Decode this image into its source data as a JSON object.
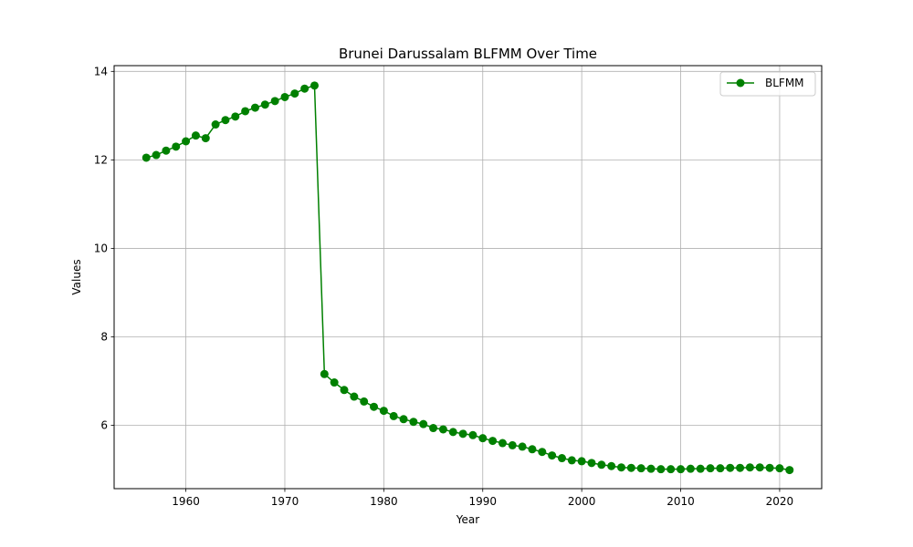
{
  "chart_data": {
    "type": "line",
    "title": "Brunei Darussalam BLFMM Over Time",
    "xlabel": "Year",
    "ylabel": "Values",
    "xlim": [
      1952.75,
      2024.25
    ],
    "ylim": [
      4.57,
      14.13
    ],
    "xticks": [
      1960,
      1970,
      1980,
      1990,
      2000,
      2010,
      2020
    ],
    "yticks": [
      6,
      8,
      10,
      12,
      14
    ],
    "grid": true,
    "legend_position": "top-right",
    "series": [
      {
        "name": "BLFMM",
        "color": "#008000",
        "marker": "circle",
        "x": [
          1956,
          1957,
          1958,
          1959,
          1960,
          1961,
          1962,
          1963,
          1964,
          1965,
          1966,
          1967,
          1968,
          1969,
          1970,
          1971,
          1972,
          1973,
          1974,
          1975,
          1976,
          1977,
          1978,
          1979,
          1980,
          1981,
          1982,
          1983,
          1984,
          1985,
          1986,
          1987,
          1988,
          1989,
          1990,
          1991,
          1992,
          1993,
          1994,
          1995,
          1996,
          1997,
          1998,
          1999,
          2000,
          2001,
          2002,
          2003,
          2004,
          2005,
          2006,
          2007,
          2008,
          2009,
          2010,
          2011,
          2012,
          2013,
          2014,
          2015,
          2016,
          2017,
          2018,
          2019,
          2020,
          2021
        ],
        "y": [
          12.05,
          12.11,
          12.21,
          12.3,
          12.42,
          12.55,
          12.49,
          12.8,
          12.9,
          12.98,
          13.1,
          13.18,
          13.25,
          13.33,
          13.42,
          13.5,
          13.61,
          13.68,
          7.16,
          6.97,
          6.8,
          6.65,
          6.54,
          6.42,
          6.33,
          6.21,
          6.14,
          6.08,
          6.03,
          5.94,
          5.91,
          5.85,
          5.81,
          5.78,
          5.71,
          5.65,
          5.6,
          5.55,
          5.52,
          5.46,
          5.4,
          5.32,
          5.26,
          5.21,
          5.19,
          5.15,
          5.11,
          5.08,
          5.05,
          5.04,
          5.03,
          5.02,
          5.01,
          5.01,
          5.01,
          5.02,
          5.02,
          5.03,
          5.03,
          5.04,
          5.04,
          5.05,
          5.05,
          5.04,
          5.03,
          4.99
        ]
      }
    ]
  }
}
